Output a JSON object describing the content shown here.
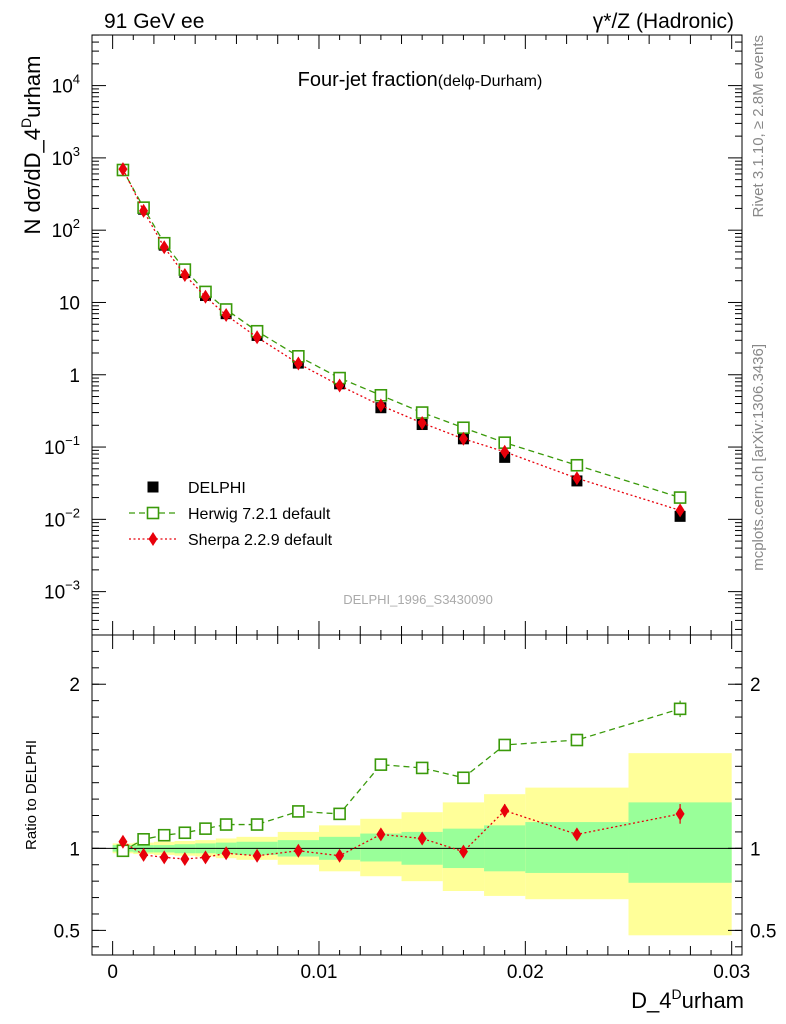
{
  "header": {
    "left": "91 GeV ee",
    "right": "γ*/Z (Hadronic)"
  },
  "side": {
    "rivet": "Rivet 3.1.10, ≥ 2.8M events",
    "mcplots": "mcplots.cern.ch [arXiv:1306.3436]"
  },
  "chart_data": {
    "type": "scatter",
    "title": "Four-jet fraction",
    "title_sub": "(delφ-Durham)",
    "watermark": "DELPHI_1996_S3430090",
    "xlabel": "D_4",
    "xlabel_sup": "D",
    "xlabel_end": "urham",
    "ylabel": "N dσ/dD_4",
    "ylabel_sup": "D",
    "ylabel_end": "urham",
    "ratio_ylabel": "Ratio to DELPHI",
    "xlim": [
      -0.001,
      0.0305
    ],
    "ylim_log": [
      -3.6,
      4.7
    ],
    "ratio_ylim": [
      0.35,
      2.3
    ],
    "x_ticks": [
      {
        "v": 0,
        "label": "0"
      },
      {
        "v": 0.01,
        "label": "0.01"
      },
      {
        "v": 0.02,
        "label": "0.02"
      },
      {
        "v": 0.03,
        "label": "0.03"
      }
    ],
    "y_ticks": [
      {
        "v": -3,
        "base": "10",
        "sup": "−3"
      },
      {
        "v": -2,
        "base": "10",
        "sup": "−2"
      },
      {
        "v": -1,
        "base": "10",
        "sup": "−1"
      },
      {
        "v": 0,
        "base": "1",
        "sup": ""
      },
      {
        "v": 1,
        "base": "10",
        "sup": ""
      },
      {
        "v": 2,
        "base": "10",
        "sup": "2"
      },
      {
        "v": 3,
        "base": "10",
        "sup": "3"
      },
      {
        "v": 4,
        "base": "10",
        "sup": "4"
      }
    ],
    "ratio_ticks": [
      {
        "v": 0.5,
        "label": "0.5"
      },
      {
        "v": 1,
        "label": "1"
      },
      {
        "v": 2,
        "label": "2"
      }
    ],
    "bins": [
      [
        0.0,
        0.001
      ],
      [
        0.001,
        0.002
      ],
      [
        0.002,
        0.003
      ],
      [
        0.003,
        0.004
      ],
      [
        0.004,
        0.005
      ],
      [
        0.005,
        0.006
      ],
      [
        0.006,
        0.008
      ],
      [
        0.008,
        0.01
      ],
      [
        0.01,
        0.012
      ],
      [
        0.012,
        0.014
      ],
      [
        0.014,
        0.016
      ],
      [
        0.016,
        0.018
      ],
      [
        0.018,
        0.02
      ],
      [
        0.02,
        0.025
      ],
      [
        0.025,
        0.03
      ]
    ],
    "x": [
      0.0005,
      0.0015,
      0.0025,
      0.0035,
      0.0045,
      0.0055,
      0.007,
      0.009,
      0.011,
      0.013,
      0.015,
      0.017,
      0.019,
      0.0225,
      0.0275
    ],
    "series": [
      {
        "name": "DELPHI",
        "color": "#000000",
        "marker": "square",
        "values": [
          690,
          195,
          62,
          26,
          12.5,
          7.0,
          3.5,
          1.45,
          0.75,
          0.35,
          0.205,
          0.13,
          0.072,
          0.034,
          0.011
        ]
      },
      {
        "name": "Herwig 7.2.1 default",
        "color": "#3a9a0a",
        "marker": "open-square",
        "line": "dashed",
        "values": [
          680,
          205,
          66,
          28.5,
          14,
          8.0,
          4.0,
          1.8,
          0.9,
          0.52,
          0.3,
          0.185,
          0.115,
          0.056,
          0.02
        ],
        "ratio": [
          0.985,
          1.055,
          1.08,
          1.095,
          1.12,
          1.145,
          1.145,
          1.225,
          1.21,
          1.51,
          1.49,
          1.43,
          1.63,
          1.66,
          1.85
        ],
        "ratio_err": [
          0.01,
          0.01,
          0.01,
          0.01,
          0.01,
          0.01,
          0.01,
          0.015,
          0.015,
          0.02,
          0.02,
          0.02,
          0.03,
          0.03,
          0.05
        ]
      },
      {
        "name": "Sherpa 2.2.9 default",
        "color": "#e8000b",
        "marker": "diamond",
        "line": "dotted",
        "values": [
          700,
          185,
          58,
          24,
          12,
          6.7,
          3.3,
          1.43,
          0.71,
          0.375,
          0.215,
          0.13,
          0.086,
          0.037,
          0.0133
        ],
        "ratio": [
          1.04,
          0.96,
          0.945,
          0.935,
          0.945,
          0.97,
          0.955,
          0.985,
          0.955,
          1.085,
          1.06,
          0.98,
          1.23,
          1.085,
          1.21
        ],
        "ratio_err": [
          0.01,
          0.01,
          0.01,
          0.01,
          0.01,
          0.01,
          0.01,
          0.015,
          0.015,
          0.02,
          0.02,
          0.03,
          0.04,
          0.03,
          0.06
        ]
      }
    ],
    "bands": {
      "green_color": "#99ff99",
      "yellow_color": "#ffff99",
      "green": [
        [
          0.98,
          1.02
        ],
        [
          0.975,
          1.02
        ],
        [
          0.975,
          1.02
        ],
        [
          0.97,
          1.025
        ],
        [
          0.97,
          1.03
        ],
        [
          0.965,
          1.035
        ],
        [
          0.96,
          1.04
        ],
        [
          0.95,
          1.05
        ],
        [
          0.93,
          1.07
        ],
        [
          0.92,
          1.09
        ],
        [
          0.9,
          1.1
        ],
        [
          0.88,
          1.12
        ],
        [
          0.86,
          1.14
        ],
        [
          0.85,
          1.16
        ],
        [
          0.79,
          1.28
        ]
      ],
      "yellow": [
        [
          0.97,
          1.03
        ],
        [
          0.965,
          1.035
        ],
        [
          0.96,
          1.04
        ],
        [
          0.955,
          1.045
        ],
        [
          0.95,
          1.05
        ],
        [
          0.94,
          1.06
        ],
        [
          0.93,
          1.07
        ],
        [
          0.9,
          1.1
        ],
        [
          0.86,
          1.14
        ],
        [
          0.83,
          1.18
        ],
        [
          0.8,
          1.22
        ],
        [
          0.74,
          1.28
        ],
        [
          0.71,
          1.33
        ],
        [
          0.69,
          1.37
        ],
        [
          0.47,
          1.58
        ]
      ]
    }
  }
}
